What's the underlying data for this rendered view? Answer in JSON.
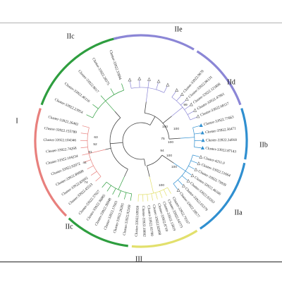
{
  "figure": {
    "colors": {
      "I": "#e8807d",
      "IIc": "#2e9e3f",
      "IIe": "#8b86d6",
      "IId": "#8b86d6",
      "IIb": "#2f8fd0",
      "IIa": "#2f8fd0",
      "III": "#e2e06c",
      "tree": "#444444"
    },
    "group_labels": [
      {
        "id": "I",
        "label": "I"
      },
      {
        "id": "IIc_top",
        "label": "IIc"
      },
      {
        "id": "IIe",
        "label": "IIe"
      },
      {
        "id": "IId",
        "label": "IId"
      },
      {
        "id": "IIb",
        "label": "IIb"
      },
      {
        "id": "IIa",
        "label": "IIa"
      },
      {
        "id": "III",
        "label": "III"
      },
      {
        "id": "IIc_bottom",
        "label": "IIc"
      }
    ],
    "bootstrap_values": [
      "100",
      "75",
      "94",
      "81",
      "44",
      "74",
      "52",
      "63",
      "99",
      "100",
      "100",
      "100",
      "100",
      "100"
    ],
    "leaves": [
      "Cluster-33922.33894",
      "Cluster-33922.28575",
      "Cluster-33922.8017",
      "Cluster-33922.46116",
      "Cluster-33922.23954",
      "Cluster-33922.26482",
      "Cluster-33922.155789",
      "Cluster-33922.104346",
      "Cluster-33922.74268",
      "Cluster-31922.104234",
      "Cluster-33922.92072",
      "Cluster-33922.89908",
      "Cluster-33922.85092",
      "Cluster-33922.45513",
      "Cluster-33922.37927",
      "Cluster-33922.36085",
      "Cluster-33922.38948",
      "Cluster-33922.17665",
      "Cluster-33922.26205",
      "Cluster-33922.92369",
      "Cluster-33922.69939",
      "Cluster-33922.19092",
      "Cluster-33922.85700",
      "Cluster-33922.82098",
      "Cluster-33922.8719",
      "Cluster-33922.15819",
      "Cluster-33922.64773",
      "Cluster-33922.70337",
      "Cluster-33922.28577",
      "Cluster-33922.65579",
      "Cluster-33922.83263",
      "Cluster-33922.46166",
      "Cluster-33922.75839",
      "Cluster-33922.51664",
      "Cluster-4251.0",
      "Cluster-33922.87143",
      "Cluster-33922.34918",
      "Cluster-33922.56471",
      "Cluster-33922.77663",
      "Cluster-33922.68117",
      "Cluster-33922.47961",
      "Cluster-33922.121808",
      "Cluster-33922.96131",
      "Cluster-33922.9678"
    ]
  }
}
